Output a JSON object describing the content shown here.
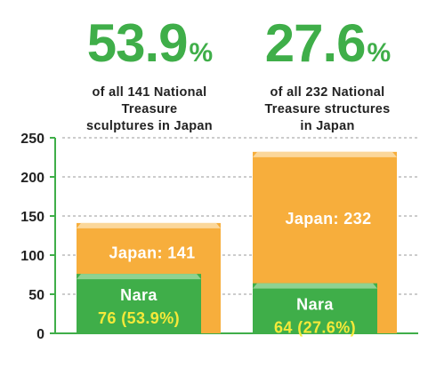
{
  "stats": [
    {
      "value": "53.9",
      "unit": "%",
      "line1": "of all 141 National",
      "line2": "Treasure",
      "line3": "sculptures in Japan"
    },
    {
      "value": "27.6",
      "unit": "%",
      "line1": "of all 232 National",
      "line2": "Treasure structures",
      "line3": "in Japan"
    }
  ],
  "colors": {
    "japan": "#f7ae3c",
    "japan_top": "#fbd79a",
    "nara": "#3fae49",
    "nara_top": "#8fd291",
    "axis": "#3fae49",
    "pct_text": "#f5e93a"
  },
  "chart_data": {
    "type": "bar",
    "categories": [
      "sculptures",
      "structures"
    ],
    "series": [
      {
        "name": "Japan",
        "values": [
          141,
          232
        ]
      },
      {
        "name": "Nara",
        "values": [
          76,
          64
        ]
      }
    ],
    "ylim": [
      0,
      250
    ],
    "yticks": [
      0,
      50,
      100,
      150,
      200,
      250
    ],
    "grid": true,
    "labels": {
      "japan": [
        "Japan: 141",
        "Japan: 232"
      ],
      "nara_name": [
        "Nara",
        "Nara"
      ],
      "nara_value": [
        "76 (53.9%)",
        "64 (27.6%)"
      ]
    }
  }
}
